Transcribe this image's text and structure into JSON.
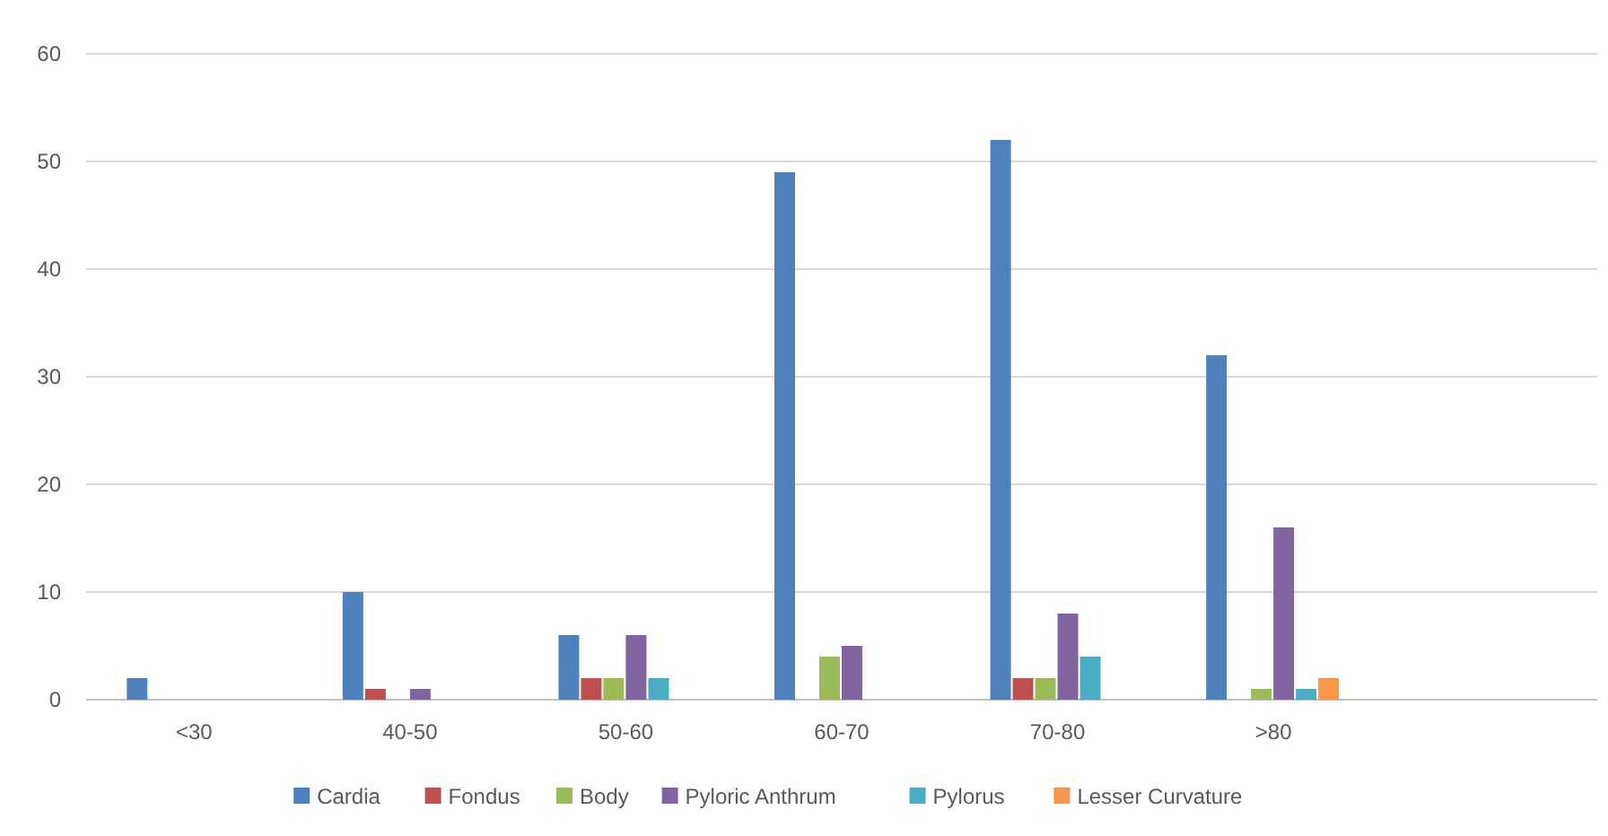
{
  "chart_data": {
    "type": "bar",
    "categories": [
      "<30",
      "40-50",
      "50-60",
      "60-70",
      "70-80",
      ">80",
      null
    ],
    "series": [
      {
        "name": "Cardia",
        "color": "#4f81bd",
        "values": [
          2,
          10,
          6,
          49,
          52,
          32,
          null
        ]
      },
      {
        "name": "Fondus",
        "color": "#c0504d",
        "values": [
          0,
          1,
          2,
          0,
          2,
          0,
          null
        ]
      },
      {
        "name": "Body",
        "color": "#9bbb59",
        "values": [
          0,
          0,
          2,
          4,
          2,
          1,
          null
        ]
      },
      {
        "name": "Pyloric Anthrum",
        "color": "#8064a2",
        "values": [
          0,
          1,
          6,
          5,
          8,
          16,
          null
        ]
      },
      {
        "name": "Pylorus",
        "color": "#4bacc6",
        "values": [
          0,
          0,
          2,
          0,
          4,
          1,
          null
        ]
      },
      {
        "name": "Lesser Curvature",
        "color": "#f79646",
        "values": [
          0,
          0,
          0,
          0,
          0,
          2,
          null
        ]
      }
    ],
    "ylim": [
      0,
      60
    ],
    "yticks": [
      0,
      10,
      20,
      30,
      40,
      50,
      60
    ],
    "grid": "y",
    "legend": "bottom"
  }
}
